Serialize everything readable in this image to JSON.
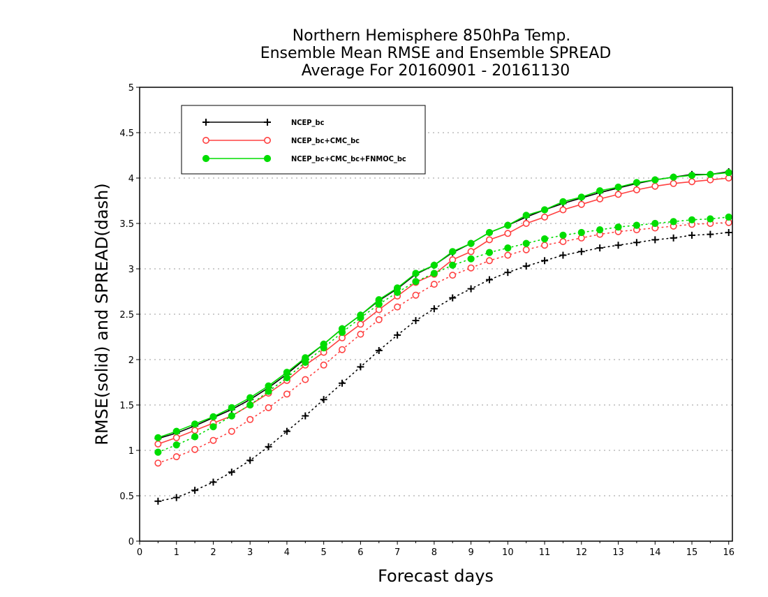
{
  "chart_data": {
    "type": "line",
    "title": [
      "Northern Hemisphere 850hPa Temp.",
      "Ensemble Mean RMSE and Ensemble SPREAD",
      "Average For 20160901 - 20161130"
    ],
    "xlabel": "Forecast days",
    "ylabel": "RMSE(solid) and SPREAD(dash)",
    "xlim": [
      0,
      16.1
    ],
    "ylim": [
      0,
      5
    ],
    "xticks": [
      0,
      1,
      2,
      3,
      4,
      5,
      6,
      7,
      8,
      9,
      10,
      11,
      12,
      13,
      14,
      15,
      16
    ],
    "xtick_labels": [
      "0",
      "1",
      "2",
      "3",
      "4",
      "5",
      "6",
      "7",
      "8",
      "9",
      "10",
      "11",
      "12",
      "13",
      "14",
      "15",
      "16"
    ],
    "yticks": [
      0,
      0.5,
      1,
      1.5,
      2,
      2.5,
      3,
      3.5,
      4,
      4.5,
      5
    ],
    "ytick_labels": [
      "0",
      "0.5",
      "1",
      "1.5",
      "2",
      "2.5",
      "3",
      "3.5",
      "4",
      "4.5",
      "5"
    ],
    "grid": true,
    "legend_position": "top-left",
    "x": [
      0.5,
      1,
      1.5,
      2,
      2.5,
      3,
      3.5,
      4,
      4.5,
      5,
      5.5,
      6,
      6.5,
      7,
      7.5,
      8,
      8.5,
      9,
      9.5,
      10,
      10.5,
      11,
      11.5,
      12,
      12.5,
      13,
      13.5,
      14,
      14.5,
      15,
      15.5,
      16
    ],
    "series": [
      {
        "name": "NCEP_bc",
        "color": "#000000",
        "marker": "plus",
        "rmse": [
          1.13,
          1.19,
          1.27,
          1.36,
          1.45,
          1.56,
          1.69,
          1.84,
          2.01,
          2.17,
          2.34,
          2.49,
          2.65,
          2.78,
          2.94,
          3.04,
          3.18,
          3.28,
          3.4,
          3.48,
          3.57,
          3.65,
          3.72,
          3.78,
          3.84,
          3.89,
          3.94,
          3.98,
          4.01,
          4.04,
          4.04,
          4.07
        ],
        "spread": [
          0.44,
          0.48,
          0.56,
          0.65,
          0.76,
          0.89,
          1.04,
          1.21,
          1.38,
          1.56,
          1.74,
          1.92,
          2.1,
          2.27,
          2.43,
          2.56,
          2.68,
          2.78,
          2.88,
          2.96,
          3.03,
          3.09,
          3.15,
          3.19,
          3.23,
          3.26,
          3.29,
          3.32,
          3.34,
          3.37,
          3.38,
          3.4
        ]
      },
      {
        "name": "NCEP_bc+CMC_bc",
        "color": "#ff4040",
        "marker": "open-circle",
        "rmse": [
          1.07,
          1.14,
          1.22,
          1.3,
          1.38,
          1.5,
          1.63,
          1.77,
          1.94,
          2.08,
          2.24,
          2.39,
          2.55,
          2.7,
          2.85,
          2.94,
          3.1,
          3.19,
          3.32,
          3.39,
          3.5,
          3.57,
          3.65,
          3.71,
          3.77,
          3.82,
          3.87,
          3.91,
          3.94,
          3.96,
          3.98,
          4.0
        ],
        "spread": [
          0.86,
          0.93,
          1.01,
          1.11,
          1.21,
          1.34,
          1.47,
          1.62,
          1.78,
          1.94,
          2.11,
          2.28,
          2.44,
          2.58,
          2.71,
          2.83,
          2.93,
          3.01,
          3.09,
          3.15,
          3.21,
          3.26,
          3.3,
          3.34,
          3.38,
          3.41,
          3.43,
          3.45,
          3.47,
          3.49,
          3.5,
          3.51
        ]
      },
      {
        "name": "NCEP_bc+CMC_bc+FNMOC_bc",
        "color": "#00dd00",
        "marker": "filled-circle",
        "rmse": [
          1.14,
          1.21,
          1.29,
          1.37,
          1.47,
          1.58,
          1.71,
          1.86,
          2.02,
          2.17,
          2.34,
          2.49,
          2.66,
          2.79,
          2.95,
          3.04,
          3.19,
          3.28,
          3.4,
          3.48,
          3.59,
          3.65,
          3.74,
          3.79,
          3.86,
          3.9,
          3.95,
          3.98,
          4.01,
          4.03,
          4.04,
          4.06
        ],
        "spread": [
          0.98,
          1.06,
          1.15,
          1.26,
          1.38,
          1.5,
          1.65,
          1.8,
          1.97,
          2.13,
          2.3,
          2.46,
          2.61,
          2.74,
          2.86,
          2.95,
          3.04,
          3.11,
          3.18,
          3.23,
          3.28,
          3.33,
          3.37,
          3.4,
          3.43,
          3.46,
          3.48,
          3.5,
          3.52,
          3.54,
          3.55,
          3.57
        ]
      }
    ]
  }
}
